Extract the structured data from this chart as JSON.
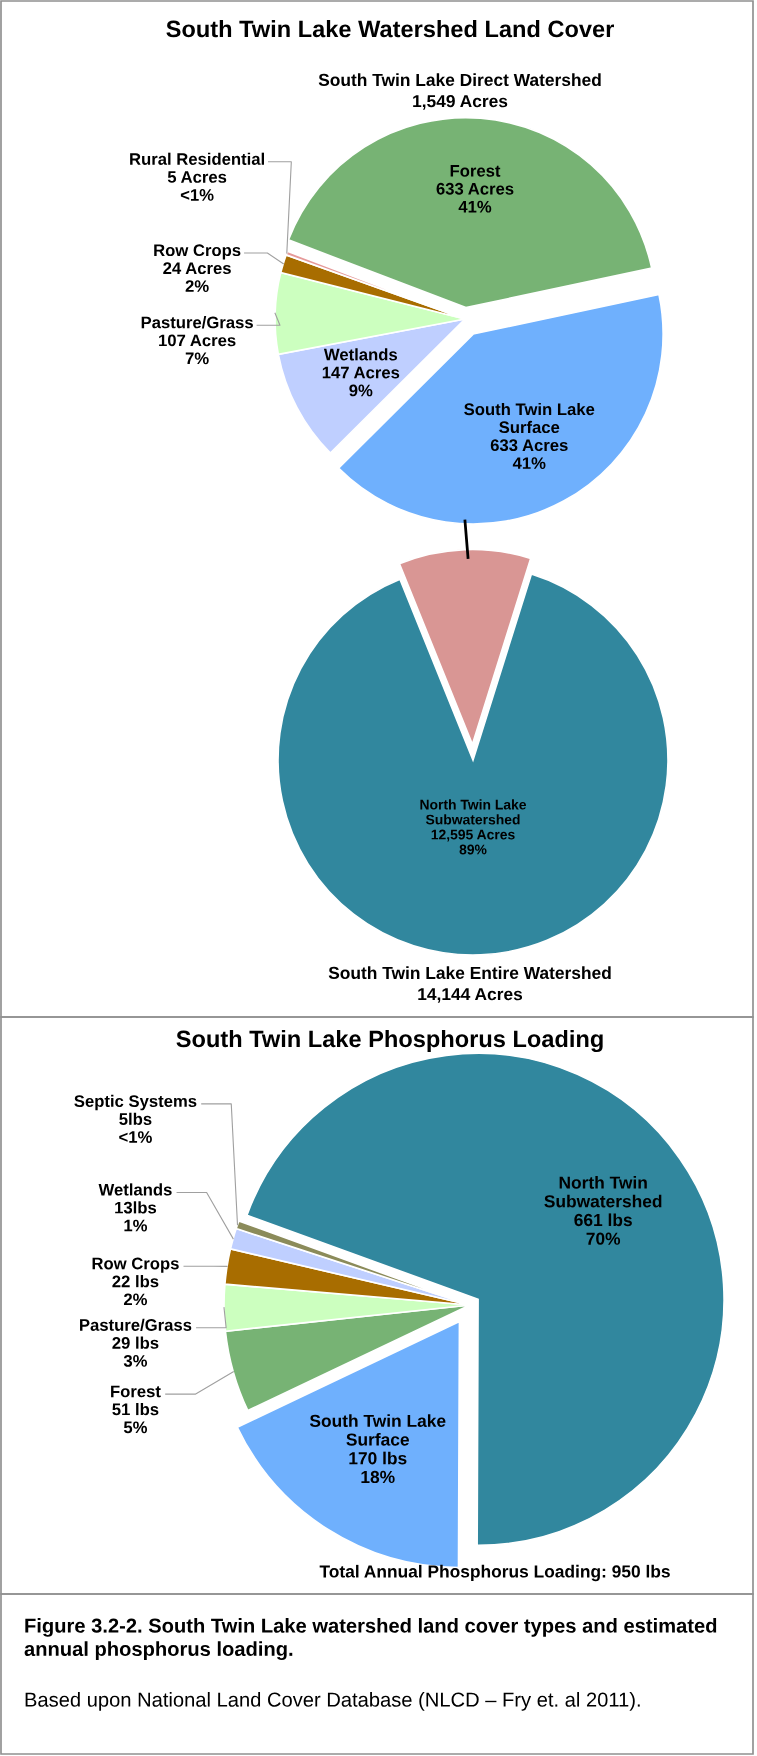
{
  "chart_data": [
    {
      "type": "pie",
      "title": "South Twin Lake Watershed Land Cover",
      "subtitle": "South Twin Lake Direct Watershed\n1,549 Acres",
      "categories": [
        "South Twin Lake\nSurface",
        "Wetlands",
        "Pasture/Grass",
        "Row Crops",
        "Rural Residential",
        "Forest"
      ],
      "values": [
        633,
        147,
        107,
        24,
        5,
        633
      ],
      "colors": [
        "#6fb0fd",
        "#bfcfff",
        "#ccffbf",
        "#a86d00",
        "#e69a9a",
        "#77b374"
      ],
      "value_labels": [
        "633 Acres\n41%",
        "147 Acres\n9%",
        "107 Acres\n7%",
        "24 Acres\n2%",
        "5 Acres\n<1%",
        "633 Acres\n41%"
      ]
    },
    {
      "type": "pie",
      "title": "South Twin Lake Entire Watershed\n14,144 Acres",
      "categories": [
        null,
        "North Twin Lake\nSubwatershed"
      ],
      "values": [
        1549,
        12595
      ],
      "colors": [
        "#d99694",
        "#31879e"
      ],
      "value_labels": [
        null,
        "12,595 Acres\n89%"
      ]
    },
    {
      "type": "pie",
      "title": "South Twin Lake Phosphorus Loading",
      "categories": [
        "North Twin\nSubwatershed",
        "South Twin Lake\nSurface",
        "Forest",
        "Pasture/Grass",
        "Row Crops",
        "Wetlands",
        "Septic Systems"
      ],
      "values": [
        661,
        170,
        51,
        29,
        22,
        13,
        5
      ],
      "colors": [
        "#31879e",
        "#6fb0fd",
        "#77b374",
        "#ccffbf",
        "#a86d00",
        "#bfcfff",
        "#8b8b5a"
      ],
      "value_labels": [
        "661 lbs\n70%",
        "170 lbs\n18%",
        "51 lbs\n5%",
        "29 lbs\n3%",
        "22 lbs\n2%",
        "13lbs\n1%",
        "5lbs\n<1%"
      ],
      "annotations": [
        "Total Annual Phosphorus Loading: 950 lbs",
        "Figure 3.2-2. South Twin Lake watershed land cover types and estimated annual phosphorus loading.",
        "Based upon National Land Cover Database (NLCD – Fry et. al 2011)."
      ]
    }
  ]
}
